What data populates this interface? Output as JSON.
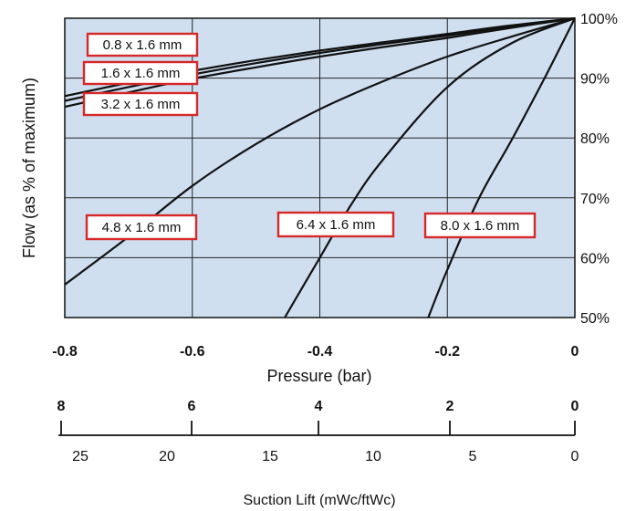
{
  "chart_data": {
    "type": "line",
    "xlabel": "Pressure (bar)",
    "ylabel": "Flow (as % of maximum)",
    "xlim": [
      -0.8,
      0
    ],
    "ylim": [
      50,
      100
    ],
    "x_ticks": [
      "-0.8",
      "-0.6",
      "-0.4",
      "-0.2",
      "0"
    ],
    "y_ticks": [
      "50%",
      "60%",
      "70%",
      "80%",
      "90%",
      "100%"
    ],
    "grid": true,
    "series": [
      {
        "name": "0.8 x 1.6 mm",
        "x": [
          -0.8,
          -0.7,
          -0.6,
          -0.5,
          -0.4,
          -0.3,
          -0.2,
          -0.1,
          0
        ],
        "y": [
          87,
          89.2,
          91.2,
          93,
          94.6,
          96,
          97.4,
          98.8,
          100
        ]
      },
      {
        "name": "1.6 x 1.6 mm",
        "x": [
          -0.8,
          -0.7,
          -0.6,
          -0.5,
          -0.4,
          -0.3,
          -0.2,
          -0.1,
          0
        ],
        "y": [
          86.2,
          88.5,
          90.6,
          92.5,
          94.2,
          95.7,
          97.1,
          98.6,
          100
        ]
      },
      {
        "name": "3.2 x 1.6 mm",
        "x": [
          -0.8,
          -0.7,
          -0.6,
          -0.5,
          -0.4,
          -0.3,
          -0.2,
          -0.1,
          0
        ],
        "y": [
          85.2,
          87.6,
          89.9,
          91.8,
          93.6,
          95.2,
          96.7,
          98.4,
          100
        ]
      },
      {
        "name": "4.8 x 1.6 mm",
        "x": [
          -0.8,
          -0.7,
          -0.6,
          -0.5,
          -0.4,
          -0.3,
          -0.2,
          -0.1,
          0
        ],
        "y": [
          55.5,
          63.5,
          72,
          79,
          84.8,
          89.5,
          93.6,
          96.9,
          100
        ]
      },
      {
        "name": "6.4 x 1.6 mm",
        "x": [
          -0.455,
          -0.4,
          -0.35,
          -0.3,
          -0.2,
          -0.1,
          0
        ],
        "y": [
          50,
          60,
          69,
          76.5,
          88.5,
          95.8,
          100
        ]
      },
      {
        "name": "8.0 x 1.6 mm",
        "x": [
          -0.23,
          -0.2,
          -0.15,
          -0.1,
          -0.05,
          0
        ],
        "y": [
          50,
          58,
          70,
          79.5,
          89.5,
          100
        ]
      }
    ]
  },
  "suction_lift": {
    "title": "Suction Lift (mWc/ftWc)",
    "mwc_ticks": [
      "8",
      "6",
      "4",
      "2",
      "0"
    ],
    "ftwc_ticks": [
      "25",
      "20",
      "15",
      "10",
      "5",
      "0"
    ]
  }
}
